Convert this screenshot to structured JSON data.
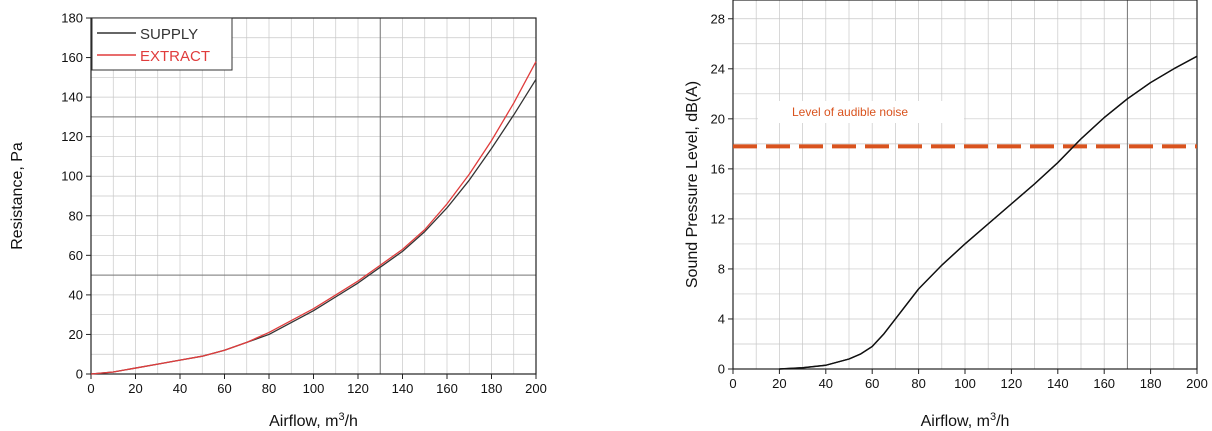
{
  "chart_data": [
    {
      "type": "line",
      "xlabel_main": "Airflow, m",
      "xlabel_sup": "3",
      "xlabel_tail": "/h",
      "ylabel": "Resistance, Pa",
      "xlim": [
        0,
        200
      ],
      "ylim": [
        0,
        180
      ],
      "xticks": [
        0,
        20,
        40,
        60,
        80,
        100,
        120,
        140,
        160,
        180,
        200
      ],
      "yticks": [
        0,
        20,
        40,
        60,
        80,
        100,
        120,
        140,
        160,
        180
      ],
      "grid": true,
      "legend_position": "top-left",
      "series": [
        {
          "name": "SUPPLY",
          "color": "#333333",
          "x": [
            0,
            10,
            20,
            30,
            40,
            50,
            60,
            70,
            80,
            90,
            100,
            110,
            120,
            130,
            140,
            150,
            160,
            170,
            180,
            190,
            200
          ],
          "y": [
            0,
            1,
            3,
            5,
            7,
            9,
            12,
            16,
            20,
            26,
            32,
            39,
            46,
            54,
            62,
            72,
            84,
            98,
            114,
            131,
            149
          ]
        },
        {
          "name": "EXTRACT",
          "color": "#e03c3c",
          "x": [
            0,
            10,
            20,
            30,
            40,
            50,
            60,
            70,
            80,
            90,
            100,
            110,
            120,
            130,
            140,
            150,
            160,
            170,
            180,
            190,
            200
          ],
          "y": [
            0,
            1,
            3,
            5,
            7,
            9,
            12,
            16,
            21,
            27,
            33,
            40,
            47,
            55,
            63,
            73,
            86,
            101,
            118,
            137,
            158
          ]
        }
      ]
    },
    {
      "type": "line",
      "xlabel_main": "Airflow, m",
      "xlabel_sup": "3",
      "xlabel_tail": "/h",
      "ylabel": "Sound Pressure Level, dB(A)",
      "xlim": [
        0,
        200
      ],
      "ylim": [
        0,
        29.5
      ],
      "xticks": [
        0,
        20,
        40,
        60,
        80,
        100,
        120,
        140,
        160,
        180,
        200
      ],
      "yticks": [
        0,
        4,
        8,
        12,
        16,
        20,
        24,
        28
      ],
      "grid": true,
      "series": [
        {
          "color": "#111111",
          "x": [
            20,
            30,
            40,
            50,
            55,
            60,
            65,
            70,
            75,
            80,
            90,
            100,
            110,
            120,
            130,
            140,
            150,
            160,
            170,
            180,
            190,
            200
          ],
          "y": [
            0,
            0.1,
            0.3,
            0.8,
            1.2,
            1.8,
            2.8,
            4.0,
            5.2,
            6.4,
            8.3,
            10.0,
            11.6,
            13.2,
            14.8,
            16.5,
            18.4,
            20.1,
            21.6,
            22.9,
            24.0,
            25.0
          ]
        }
      ],
      "reference_line": {
        "y": 17.8,
        "color": "#d9531e",
        "label": "Level of audible noise"
      }
    }
  ]
}
